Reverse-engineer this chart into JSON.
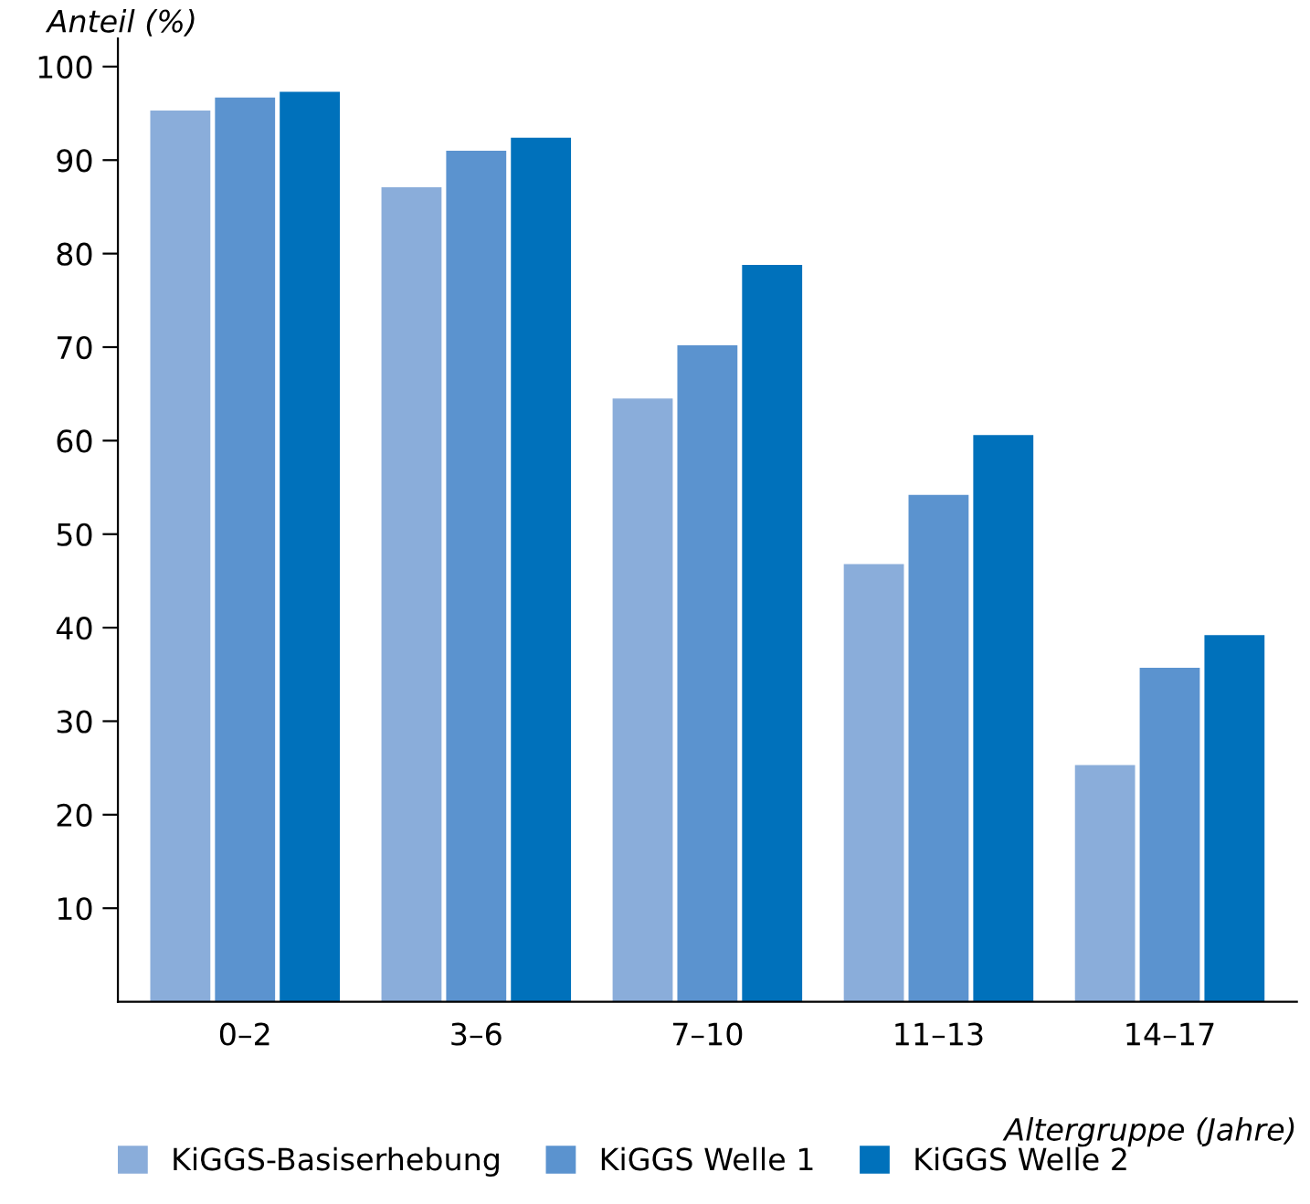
{
  "chart_data": {
    "type": "bar",
    "ylabel": "Anteil (%)",
    "xlabel": "Altergruppe (Jahre)",
    "categories": [
      "0–2",
      "3–6",
      "7–10",
      "11–13",
      "14–17"
    ],
    "series": [
      {
        "name": "KiGGS-Basiserhebung",
        "color": "#8aadda",
        "values": [
          95.3,
          87.1,
          64.5,
          46.8,
          25.3
        ]
      },
      {
        "name": "KiGGS Welle 1",
        "color": "#5b93cf",
        "values": [
          96.7,
          91.0,
          70.2,
          54.2,
          35.7
        ]
      },
      {
        "name": "KiGGS Welle 2",
        "color": "#0071bb",
        "values": [
          97.3,
          92.4,
          78.8,
          60.6,
          39.2
        ]
      }
    ],
    "ylim": [
      0,
      103
    ],
    "yticks": [
      10,
      20,
      30,
      40,
      50,
      60,
      70,
      80,
      90,
      100
    ],
    "grid": false,
    "legend": "bottom left"
  }
}
